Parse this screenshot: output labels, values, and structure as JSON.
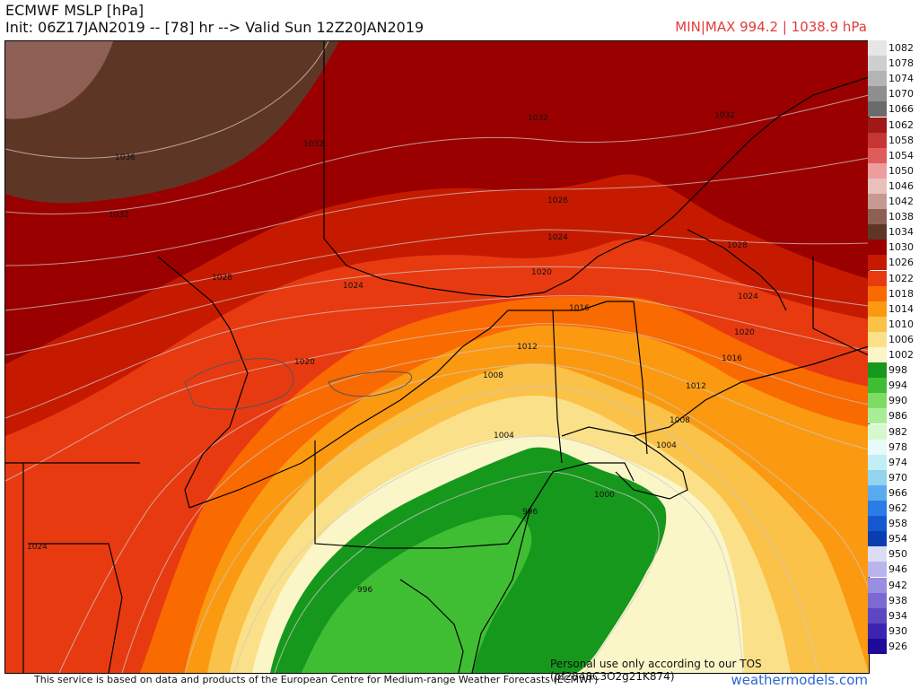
{
  "header": {
    "title": "ECMWF MSLP [hPa]",
    "init_line": "Init: 06Z17JAN2019 -- [78] hr --> Valid Sun 12Z20JAN2019",
    "minmax": "MIN|MAX 994.2 | 1038.9 hPa"
  },
  "legend": {
    "levels": [
      {
        "label": "1082",
        "color": "#e6e6e6"
      },
      {
        "label": "1078",
        "color": "#cfcfcf"
      },
      {
        "label": "1074",
        "color": "#b4b4b4"
      },
      {
        "label": "1070",
        "color": "#8e8e8e"
      },
      {
        "label": "1066",
        "color": "#6b6b6b"
      },
      {
        "label": "1062",
        "color": "#a01818"
      },
      {
        "label": "1058",
        "color": "#c63434"
      },
      {
        "label": "1054",
        "color": "#e05b5b"
      },
      {
        "label": "1050",
        "color": "#ee9d9d"
      },
      {
        "label": "1046",
        "color": "#e8c0bc"
      },
      {
        "label": "1042",
        "color": "#c69a90"
      },
      {
        "label": "1038",
        "color": "#8e6055"
      },
      {
        "label": "1034",
        "color": "#5e3626"
      },
      {
        "label": "1030",
        "color": "#9a0000"
      },
      {
        "label": "1026",
        "color": "#c61a00"
      },
      {
        "label": "1022",
        "color": "#e83a10"
      },
      {
        "label": "1018",
        "color": "#f96a00"
      },
      {
        "label": "1014",
        "color": "#fb9a10"
      },
      {
        "label": "1010",
        "color": "#fbc24a"
      },
      {
        "label": "1006",
        "color": "#fbe08a"
      },
      {
        "label": "1002",
        "color": "#fbf6c8"
      },
      {
        "label": "998",
        "color": "#16981c"
      },
      {
        "label": "994",
        "color": "#3fbe34"
      },
      {
        "label": "990",
        "color": "#7ddc62"
      },
      {
        "label": "986",
        "color": "#a8ee98"
      },
      {
        "label": "982",
        "color": "#d6f8cc"
      },
      {
        "label": "978",
        "color": "#e8fafc"
      },
      {
        "label": "974",
        "color": "#c2eef6"
      },
      {
        "label": "970",
        "color": "#92d4ee"
      },
      {
        "label": "966",
        "color": "#5aaaf0"
      },
      {
        "label": "962",
        "color": "#2a7ce6"
      },
      {
        "label": "958",
        "color": "#1458d0"
      },
      {
        "label": "954",
        "color": "#0a3eb0"
      },
      {
        "label": "950",
        "color": "#dcdcf4"
      },
      {
        "label": "946",
        "color": "#bab4ec"
      },
      {
        "label": "942",
        "color": "#9a8ee0"
      },
      {
        "label": "938",
        "color": "#7c6ad2"
      },
      {
        "label": "934",
        "color": "#5c46c2"
      },
      {
        "label": "930",
        "color": "#3c24b0"
      },
      {
        "label": "926",
        "color": "#1e0a98"
      }
    ]
  },
  "contour_labels": [
    {
      "text": "1036",
      "role": "contour"
    },
    {
      "text": "1032",
      "role": "contour"
    },
    {
      "text": "1032",
      "role": "contour"
    },
    {
      "text": "1032",
      "role": "contour"
    },
    {
      "text": "1032",
      "role": "contour"
    },
    {
      "text": "1028",
      "role": "contour"
    },
    {
      "text": "1028",
      "role": "contour"
    },
    {
      "text": "1028",
      "role": "contour"
    },
    {
      "text": "1024",
      "role": "contour"
    },
    {
      "text": "1024",
      "role": "contour"
    },
    {
      "text": "1024",
      "role": "contour"
    },
    {
      "text": "1024",
      "role": "contour"
    },
    {
      "text": "1020",
      "role": "contour"
    },
    {
      "text": "1020",
      "role": "contour"
    },
    {
      "text": "1020",
      "role": "contour"
    },
    {
      "text": "1016",
      "role": "contour"
    },
    {
      "text": "1016",
      "role": "contour"
    },
    {
      "text": "1012",
      "role": "contour"
    },
    {
      "text": "1012",
      "role": "contour"
    },
    {
      "text": "1008",
      "role": "contour"
    },
    {
      "text": "1008",
      "role": "contour"
    },
    {
      "text": "1004",
      "role": "contour"
    },
    {
      "text": "1004",
      "role": "contour"
    },
    {
      "text": "1000",
      "role": "contour"
    },
    {
      "text": "996",
      "role": "contour"
    },
    {
      "text": "996",
      "role": "contour"
    }
  ],
  "notice": "Personal use only according to our TOS (pf2848C3O2g21K874)",
  "footer": {
    "disclaimer": "This service is based on data and products of the European Centre for Medium-range Weather Forecasts (ECMWF)",
    "brand": "weathermodels.com"
  }
}
